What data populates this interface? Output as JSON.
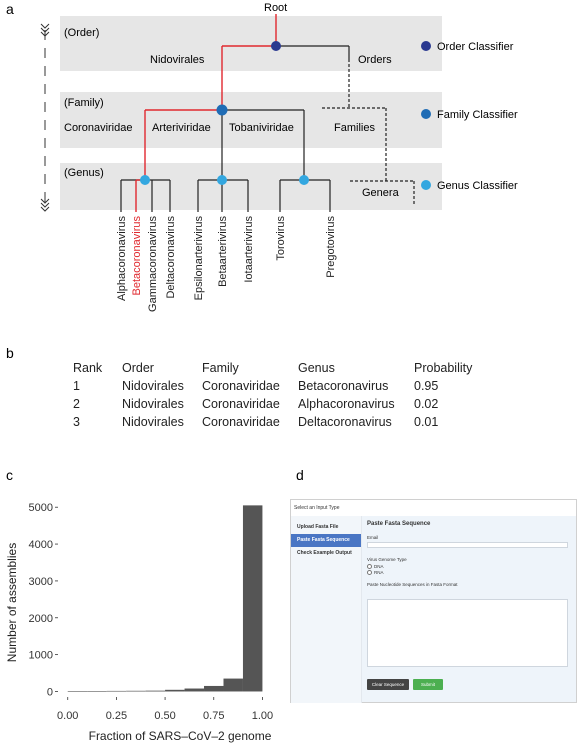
{
  "panel_labels": {
    "a": "a",
    "b": "b",
    "c": "c",
    "d": "d"
  },
  "tree": {
    "root": "Root",
    "rows": [
      {
        "rank": "(Order)",
        "names": [
          "Nidovirales"
        ],
        "connector": "Orders",
        "classifier": "Order Classifier",
        "color": "#2a3990"
      },
      {
        "rank": "(Family)",
        "names": [
          "Coronaviridae",
          "Arteriviridae",
          "Tobaniviridae"
        ],
        "connector": "Families",
        "classifier": "Family Classifier",
        "color": "#1f6cb5"
      },
      {
        "rank": "(Genus)",
        "names": [],
        "connector": "Genera",
        "classifier": "Genus Classifier",
        "color": "#33a7e0"
      }
    ],
    "genera": [
      {
        "name": "Alphacoronavirus",
        "highlight": false
      },
      {
        "name": "Betacoronavirus",
        "highlight": true
      },
      {
        "name": "Gammacoronavirus",
        "highlight": false
      },
      {
        "name": "Deltacoronavirus",
        "highlight": false
      },
      {
        "name": "Epsilonarterivirus",
        "highlight": false
      },
      {
        "name": "Betaarterivirus",
        "highlight": false
      },
      {
        "name": "Iotaarterivirus",
        "highlight": false
      },
      {
        "name": "Torovirus",
        "highlight": false
      },
      {
        "name": "Pregotovirus",
        "highlight": false
      }
    ],
    "highlight_color": "#e0282e"
  },
  "table": {
    "headers": [
      "Rank",
      "Order",
      "Family",
      "Genus",
      "Probability"
    ],
    "rows": [
      [
        "1",
        "Nidovirales",
        "Coronaviridae",
        "Betacoronavirus",
        "0.95"
      ],
      [
        "2",
        "Nidovirales",
        "Coronaviridae",
        "Alphacoronavirus",
        "0.02"
      ],
      [
        "3",
        "Nidovirales",
        "Coronaviridae",
        "Deltacoronavirus",
        "0.01"
      ]
    ]
  },
  "chart_data": {
    "type": "bar",
    "xlabel": "Fraction of SARS–CoV–2 genome",
    "ylabel": "Number of assemblies",
    "xlim": [
      -0.05,
      1.08
    ],
    "ylim": [
      -150,
      5250
    ],
    "x_ticks": [
      "0.00",
      "0.25",
      "0.50",
      "0.75",
      "1.00"
    ],
    "x_tick_values": [
      0,
      0.25,
      0.5,
      0.75,
      1.0
    ],
    "y_ticks": [
      "0",
      "1000",
      "2000",
      "3000",
      "4000",
      "5000"
    ],
    "y_tick_values": [
      0,
      1000,
      2000,
      3000,
      4000,
      5000
    ],
    "bins": [
      {
        "x0": 0.0,
        "x1": 0.1,
        "value": 8
      },
      {
        "x0": 0.1,
        "x1": 0.2,
        "value": 12
      },
      {
        "x0": 0.2,
        "x1": 0.3,
        "value": 15
      },
      {
        "x0": 0.3,
        "x1": 0.4,
        "value": 18
      },
      {
        "x0": 0.4,
        "x1": 0.5,
        "value": 22
      },
      {
        "x0": 0.5,
        "x1": 0.6,
        "value": 45
      },
      {
        "x0": 0.6,
        "x1": 0.7,
        "value": 80
      },
      {
        "x0": 0.7,
        "x1": 0.8,
        "value": 150
      },
      {
        "x0": 0.8,
        "x1": 0.9,
        "value": 350
      },
      {
        "x0": 0.9,
        "x1": 1.0,
        "value": 5050
      }
    ],
    "bar_color": "#555555",
    "grid": false
  },
  "ui": {
    "header": "Select an Input Type",
    "sidebar": [
      {
        "label": "Upload Fasta File",
        "active": false
      },
      {
        "label": "Paste Fasta Sequence",
        "active": true
      },
      {
        "label": "Check Example Output",
        "active": false
      }
    ],
    "main": {
      "title": "Paste Fasta Sequence",
      "email_label": "Email",
      "genome_type_label": "Virus Genome Type",
      "genome_options": [
        "DNA",
        "RNA"
      ],
      "sequence_label": "Paste Nucleotide Sequences in Fasta Format",
      "clear_button": "Clear Sequence",
      "submit_button": "Submit"
    }
  }
}
